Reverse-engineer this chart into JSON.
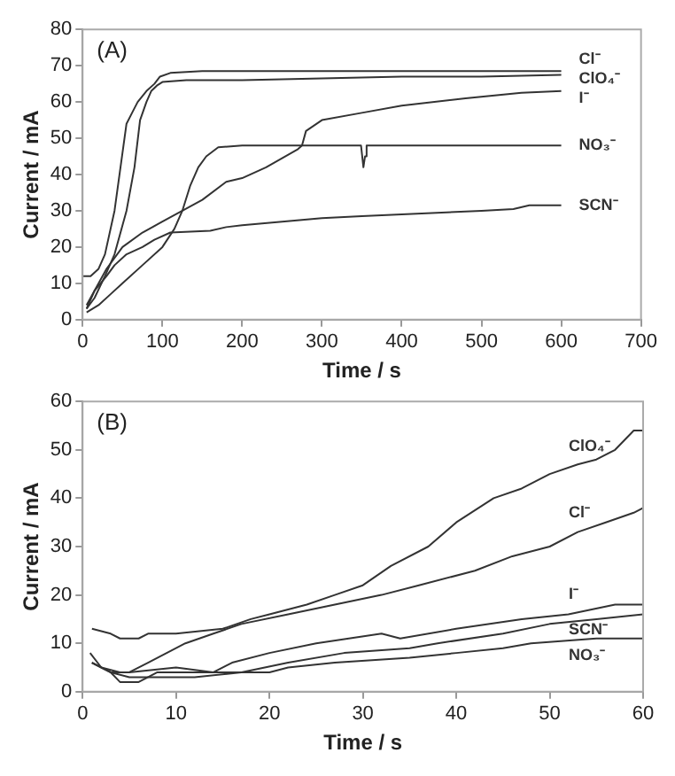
{
  "chart_data": [
    {
      "type": "line",
      "xlabel": "Time / s",
      "ylabel": "Current / mA",
      "annotations": [
        "(A)"
      ],
      "xlim": [
        0,
        700
      ],
      "xticks": [
        0,
        100,
        200,
        300,
        400,
        500,
        600,
        700
      ],
      "ylim": [
        0,
        80
      ],
      "yticks": [
        0,
        10,
        20,
        30,
        40,
        50,
        60,
        70,
        80
      ],
      "grid": false,
      "legend": false,
      "marker": "none",
      "line_style": "solid",
      "series": [
        {
          "name": "Cl⁻",
          "color": "#333333",
          "x": [
            0,
            10,
            20,
            28,
            40,
            55,
            62,
            69,
            80,
            90,
            97,
            110,
            150,
            200,
            300,
            400,
            500,
            600
          ],
          "values": [
            12,
            12,
            14,
            18,
            30,
            54,
            57,
            60,
            63,
            65,
            67,
            68,
            68.5,
            68.5,
            68.5,
            68.5,
            68.5,
            68.5
          ]
        },
        {
          "name": "ClO₄⁻",
          "color": "#333333",
          "x": [
            5,
            15,
            28,
            40,
            55,
            65,
            72,
            80,
            86,
            93,
            100,
            130,
            200,
            300,
            400,
            500,
            600
          ],
          "values": [
            3,
            6,
            12,
            18,
            30,
            42,
            55,
            60,
            63,
            64.5,
            65.5,
            66,
            66,
            66.5,
            67,
            67,
            67.5
          ]
        },
        {
          "name": "I⁻",
          "color": "#333333",
          "x": [
            5,
            15,
            30,
            50,
            75,
            100,
            125,
            150,
            180,
            200,
            230,
            270,
            275,
            280,
            300,
            350,
            400,
            480,
            550,
            600
          ],
          "values": [
            3,
            8,
            14,
            20,
            24,
            27,
            30,
            33,
            38,
            39,
            42,
            47,
            48,
            52,
            55,
            57,
            59,
            61,
            62.5,
            63
          ]
        },
        {
          "name": "NO₃⁻",
          "color": "#333333",
          "x": [
            5,
            20,
            35,
            50,
            75,
            100,
            115,
            125,
            135,
            145,
            155,
            170,
            200,
            250,
            300,
            349,
            351,
            352,
            354,
            356,
            400,
            500,
            600
          ],
          "values": [
            2,
            4,
            7,
            10,
            15,
            20,
            25,
            30,
            37,
            42,
            45,
            47.5,
            48,
            48,
            48,
            48,
            44,
            42,
            45,
            48,
            48,
            48,
            48
          ]
        },
        {
          "name": "SCN⁻",
          "color": "#333333",
          "x": [
            5,
            15,
            30,
            40,
            55,
            75,
            90,
            110,
            160,
            180,
            200,
            250,
            300,
            350,
            400,
            450,
            500,
            540,
            560,
            600
          ],
          "values": [
            4,
            8,
            12,
            15,
            18,
            20,
            22,
            24,
            24.5,
            25.5,
            26,
            27,
            28,
            28.5,
            29,
            29.5,
            30,
            30.5,
            31.5,
            31.5
          ]
        }
      ]
    },
    {
      "type": "line",
      "xlabel": "Time / s",
      "ylabel": "Current / mA",
      "annotations": [
        "(B)"
      ],
      "xlim": [
        0,
        60
      ],
      "xticks": [
        0,
        10,
        20,
        30,
        40,
        50,
        60
      ],
      "ylim": [
        0,
        60
      ],
      "yticks": [
        0,
        10,
        20,
        30,
        40,
        50,
        60
      ],
      "grid": false,
      "legend": false,
      "marker": "none",
      "line_style": "solid",
      "series": [
        {
          "name": "ClO₄⁻",
          "color": "#333333",
          "x": [
            1,
            3,
            4,
            6,
            7,
            10,
            15,
            18,
            20,
            24,
            27,
            30,
            33,
            37,
            40,
            44,
            47,
            50,
            53,
            55,
            57,
            59,
            60
          ],
          "values": [
            13,
            12,
            11,
            11,
            12,
            12,
            13,
            15,
            16,
            18,
            20,
            22,
            26,
            30,
            35,
            40,
            42,
            45,
            47,
            48,
            50,
            54,
            54
          ]
        },
        {
          "name": "Cl⁻",
          "color": "#333333",
          "x": [
            0.8,
            2,
            4,
            5,
            7,
            9,
            11,
            14,
            17,
            22,
            27,
            32,
            36,
            42,
            46,
            50,
            53,
            56,
            59,
            60
          ],
          "values": [
            8,
            5,
            4,
            4,
            6,
            8,
            10,
            12,
            14,
            16,
            18,
            20,
            22,
            25,
            28,
            30,
            33,
            35,
            37,
            38
          ]
        },
        {
          "name": "I⁻",
          "color": "#333333",
          "x": [
            1,
            3,
            4,
            6,
            8,
            14,
            16,
            20,
            25,
            32,
            34,
            40,
            47,
            52,
            57,
            60
          ],
          "values": [
            6,
            4,
            2,
            2,
            4,
            4,
            6,
            8,
            10,
            12,
            11,
            13,
            15,
            16,
            18,
            18
          ]
        },
        {
          "name": "SCN⁻",
          "color": "#333333",
          "x": [
            1,
            3,
            5,
            12,
            17,
            22,
            28,
            35,
            38,
            45,
            50,
            55,
            60
          ],
          "values": [
            6,
            4,
            3,
            3,
            4,
            6,
            8,
            9,
            10,
            12,
            14,
            15,
            16
          ]
        },
        {
          "name": "NO₃⁻",
          "color": "#333333",
          "x": [
            1,
            3,
            5,
            10,
            14,
            20,
            22,
            27,
            35,
            40,
            45,
            48,
            55,
            60
          ],
          "values": [
            6,
            4,
            4,
            5,
            4,
            4,
            5,
            6,
            7,
            8,
            9,
            10,
            11,
            11
          ]
        }
      ]
    }
  ]
}
